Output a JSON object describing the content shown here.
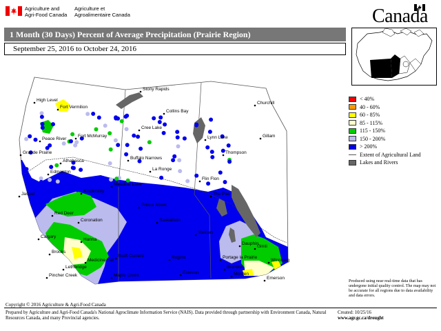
{
  "header": {
    "department_en_line1": "Agriculture and",
    "department_en_line2": "Agri-Food Canada",
    "department_fr_line1": "Agriculture et",
    "department_fr_line2": "Agroalimentaire Canada",
    "wordmark": "Canada"
  },
  "map": {
    "title": "1 Month (30 Days) Percent of Average Precipitation  (Prairie Region)",
    "date_range": "September 25, 2016 to October 24, 2016",
    "places": [
      {
        "name": "Stony Rapids"
      },
      {
        "name": "High Level"
      },
      {
        "name": "Fort Vermilion"
      },
      {
        "name": "Collins Bay"
      },
      {
        "name": "Churchill"
      },
      {
        "name": "Cree Lake"
      },
      {
        "name": "Fort McMurray"
      },
      {
        "name": "Peace River"
      },
      {
        "name": "Lynn Lake"
      },
      {
        "name": "Gillam"
      },
      {
        "name": "Grande Prairie"
      },
      {
        "name": "Buffalo Narrows"
      },
      {
        "name": "Thompson"
      },
      {
        "name": "Athabasca"
      },
      {
        "name": "La Ronge"
      },
      {
        "name": "Flin Flon"
      },
      {
        "name": "Edmonton"
      },
      {
        "name": "Meadow Lake"
      },
      {
        "name": "Jasper"
      },
      {
        "name": "The Pas"
      },
      {
        "name": "Red Deer"
      },
      {
        "name": "Prince Albert"
      },
      {
        "name": "Coronation"
      },
      {
        "name": "Saskatoon"
      },
      {
        "name": "Calgary"
      },
      {
        "name": "Hanna"
      },
      {
        "name": "Kindersley"
      },
      {
        "name": "Yorkton"
      },
      {
        "name": "Brooks"
      },
      {
        "name": "Dauphin"
      },
      {
        "name": "Medicine Hat"
      },
      {
        "name": "Swift Current"
      },
      {
        "name": "Regina"
      },
      {
        "name": "Lethbridge"
      },
      {
        "name": "Brandon"
      },
      {
        "name": "Gimli"
      },
      {
        "name": "Pincher Creek"
      },
      {
        "name": "Maple Creek"
      },
      {
        "name": "Estevan"
      },
      {
        "name": "Winnipeg"
      },
      {
        "name": "Morden"
      },
      {
        "name": "Emerson"
      },
      {
        "name": "Portage la Prairie"
      }
    ]
  },
  "legend": {
    "items": [
      {
        "label": "< 40%",
        "color": "#ff0000",
        "type": "swatch"
      },
      {
        "label": "40 - 60%",
        "color": "#ff9900",
        "type": "swatch"
      },
      {
        "label": "60 - 85%",
        "color": "#ffff00",
        "type": "swatch"
      },
      {
        "label": "85 - 115%",
        "color": "#ffffcc",
        "type": "swatch"
      },
      {
        "label": "115 - 150%",
        "color": "#00cc00",
        "type": "swatch"
      },
      {
        "label": "150 - 200%",
        "color": "#bbbbee",
        "type": "swatch"
      },
      {
        "label": "> 200%",
        "color": "#0000ee",
        "type": "swatch"
      },
      {
        "label": "Extent of Agricultural Land",
        "color": "#555555",
        "type": "line"
      },
      {
        "label": "Lakes and Rivers",
        "color": "#666666",
        "type": "swatch"
      }
    ]
  },
  "notes": {
    "disclaimer": "Produced using near real-time data that has undergone initial quality control.  The map may not be accurate for all regions due to data availability and data errors.",
    "copyright": "Copyright © 2016 Agriculture & Agri-Food Canada",
    "prepared": "Prepared by Agriculture and Agri-Food Canada's National Agroclimate Information Service (NAIS).  Data provided through partnership with Environment Canada, Natural Resources Canada, and many Provincial agencies.",
    "created": "Created: 10/25/16",
    "url": "www.agr.gc.ca/drought"
  },
  "colors": {
    "title_bar": "#777777",
    "heavy_blue": "#0000ee",
    "green": "#00cc00",
    "lavender": "#bbbbee",
    "pale_yellow": "#ffffcc",
    "lake_gray": "#666666"
  }
}
